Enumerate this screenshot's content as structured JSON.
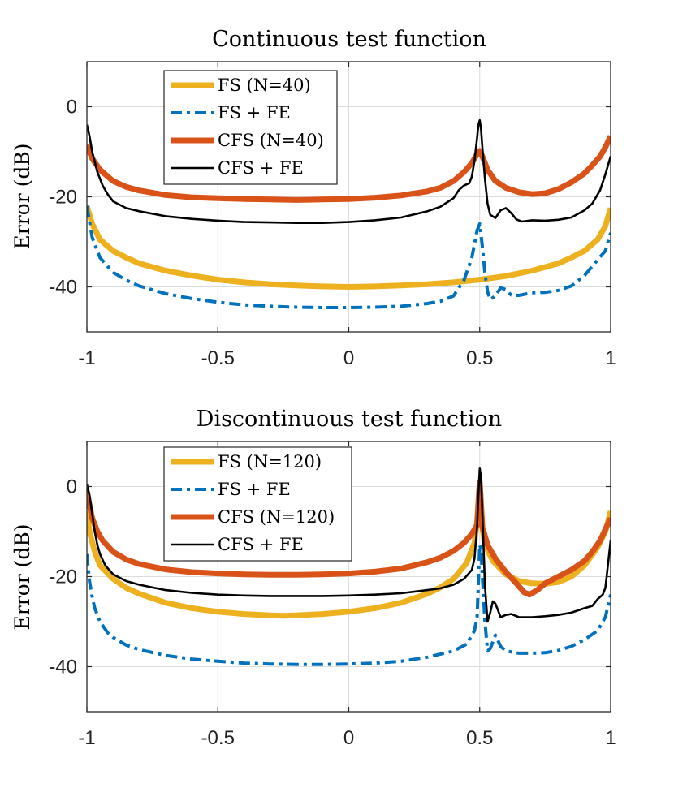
{
  "chart_data": [
    {
      "type": "line",
      "title": "Continuous test function",
      "xlabel": "",
      "ylabel": "Error (dB)",
      "xlim": [
        -1,
        1
      ],
      "ylim": [
        -50,
        10
      ],
      "xticks": [
        -1,
        -0.5,
        0,
        0.5,
        1
      ],
      "xtick_labels": [
        "-1",
        "-0.5",
        "0",
        "0.5",
        "1"
      ],
      "yticks": [
        -40,
        -20,
        0
      ],
      "ytick_labels": [
        "-40",
        "-20",
        "0"
      ],
      "grid": true,
      "legend_position": "top-left",
      "series": [
        {
          "name": "FS (N=40)",
          "color": "#EDB120",
          "style": "solid-thick",
          "x": [
            -1,
            -0.98,
            -0.95,
            -0.9,
            -0.85,
            -0.8,
            -0.7,
            -0.6,
            -0.5,
            -0.4,
            -0.3,
            -0.2,
            -0.1,
            0,
            0.1,
            0.2,
            0.3,
            0.4,
            0.5,
            0.6,
            0.7,
            0.8,
            0.85,
            0.9,
            0.95,
            0.98,
            1
          ],
          "y": [
            -22,
            -26,
            -29.5,
            -32,
            -33.5,
            -34.8,
            -36.4,
            -37.5,
            -38.4,
            -39,
            -39.4,
            -39.7,
            -39.9,
            -40,
            -39.9,
            -39.7,
            -39.4,
            -39,
            -38.4,
            -37.6,
            -36.4,
            -34.8,
            -33.5,
            -32,
            -29.5,
            -26.5,
            -22.5
          ]
        },
        {
          "name": "FS + FE",
          "color": "#0072BD",
          "style": "dash-dot",
          "x": [
            -1,
            -0.98,
            -0.95,
            -0.92,
            -0.9,
            -0.85,
            -0.8,
            -0.7,
            -0.6,
            -0.5,
            -0.4,
            -0.3,
            -0.2,
            -0.1,
            0,
            0.1,
            0.2,
            0.3,
            0.35,
            0.4,
            0.44,
            0.47,
            0.49,
            0.5,
            0.51,
            0.52,
            0.53,
            0.54,
            0.56,
            0.58,
            0.6,
            0.62,
            0.65,
            0.7,
            0.75,
            0.8,
            0.85,
            0.9,
            0.95,
            0.98,
            1
          ],
          "y": [
            -22,
            -29,
            -33.5,
            -35.5,
            -36.8,
            -38.5,
            -39.8,
            -41.5,
            -42.6,
            -43.4,
            -44,
            -44.3,
            -44.5,
            -44.6,
            -44.6,
            -44.5,
            -44.3,
            -43.7,
            -43.2,
            -42,
            -38.5,
            -33.5,
            -27.5,
            -26,
            -31,
            -37,
            -41,
            -42.8,
            -42,
            -40.2,
            -40.6,
            -41.8,
            -41.9,
            -41.3,
            -41.2,
            -40.8,
            -39.8,
            -37.5,
            -34,
            -32,
            -28
          ]
        },
        {
          "name": "CFS (N=40)",
          "color": "#D95319",
          "style": "solid-thick",
          "x": [
            -1,
            -0.98,
            -0.95,
            -0.9,
            -0.85,
            -0.8,
            -0.7,
            -0.6,
            -0.5,
            -0.4,
            -0.3,
            -0.2,
            -0.1,
            0,
            0.1,
            0.2,
            0.3,
            0.35,
            0.4,
            0.44,
            0.47,
            0.49,
            0.5,
            0.51,
            0.53,
            0.56,
            0.6,
            0.65,
            0.7,
            0.75,
            0.8,
            0.85,
            0.9,
            0.93,
            0.96,
            0.98,
            1
          ],
          "y": [
            -8.5,
            -11.5,
            -14,
            -16.5,
            -17.8,
            -18.6,
            -19.6,
            -20.1,
            -20.3,
            -20.5,
            -20.6,
            -20.7,
            -20.6,
            -20.5,
            -20.2,
            -19.7,
            -18.8,
            -18,
            -16.5,
            -14.5,
            -12.5,
            -10.5,
            -9.8,
            -11,
            -14,
            -16.5,
            -18,
            -19,
            -19.4,
            -19.2,
            -18.3,
            -16.8,
            -14.8,
            -13,
            -11,
            -9,
            -6.5
          ]
        },
        {
          "name": "CFS + FE",
          "color": "#000000",
          "style": "solid",
          "x": [
            -1,
            -0.99,
            -0.98,
            -0.96,
            -0.94,
            -0.92,
            -0.9,
            -0.85,
            -0.8,
            -0.7,
            -0.6,
            -0.5,
            -0.4,
            -0.3,
            -0.2,
            -0.1,
            0,
            0.1,
            0.2,
            0.3,
            0.35,
            0.4,
            0.42,
            0.44,
            0.46,
            0.47,
            0.48,
            0.49,
            0.495,
            0.5,
            0.505,
            0.51,
            0.52,
            0.53,
            0.54,
            0.56,
            0.58,
            0.6,
            0.62,
            0.64,
            0.66,
            0.7,
            0.75,
            0.8,
            0.85,
            0.9,
            0.93,
            0.96,
            0.98,
            1
          ],
          "y": [
            -4,
            -6.5,
            -10,
            -14.5,
            -17.5,
            -19.5,
            -21,
            -22.5,
            -23.2,
            -24.3,
            -24.9,
            -25.3,
            -25.6,
            -25.7,
            -25.8,
            -25.8,
            -25.6,
            -25.2,
            -24.6,
            -23.2,
            -22.2,
            -20.3,
            -18.5,
            -17.5,
            -17,
            -15.5,
            -12,
            -7,
            -4,
            -3,
            -5,
            -9,
            -16,
            -21.5,
            -24,
            -24.7,
            -23,
            -22.5,
            -23.6,
            -25,
            -25.5,
            -25.2,
            -25.3,
            -25.1,
            -24.6,
            -23,
            -21.5,
            -18.5,
            -15,
            -11
          ]
        }
      ]
    },
    {
      "type": "line",
      "title": "Discontinuous test function",
      "xlabel": "",
      "ylabel": "Error (dB)",
      "xlim": [
        -1,
        1
      ],
      "ylim": [
        -50,
        10
      ],
      "xticks": [
        -1,
        -0.5,
        0,
        0.5,
        1
      ],
      "xtick_labels": [
        "-1",
        "-0.5",
        "0",
        "0.5",
        "1"
      ],
      "yticks": [
        -40,
        -20,
        0
      ],
      "ytick_labels": [
        "-40",
        "-20",
        "0"
      ],
      "grid": true,
      "legend_position": "top-left",
      "series": [
        {
          "name": "FS (N=120)",
          "color": "#EDB120",
          "style": "solid-thick",
          "x": [
            -1,
            -0.99,
            -0.97,
            -0.95,
            -0.9,
            -0.85,
            -0.8,
            -0.7,
            -0.6,
            -0.5,
            -0.4,
            -0.3,
            -0.25,
            -0.2,
            -0.1,
            0,
            0.1,
            0.2,
            0.3,
            0.35,
            0.4,
            0.45,
            0.48,
            0.49,
            0.495,
            0.5,
            0.505,
            0.51,
            0.52,
            0.55,
            0.6,
            0.65,
            0.7,
            0.75,
            0.8,
            0.85,
            0.9,
            0.95,
            0.98,
            1
          ],
          "y": [
            -5.5,
            -10,
            -14.5,
            -17.5,
            -20.5,
            -22.5,
            -23.8,
            -25.8,
            -27,
            -27.8,
            -28.3,
            -28.6,
            -28.7,
            -28.6,
            -28.3,
            -27.8,
            -27,
            -25.8,
            -23.8,
            -22.4,
            -20.5,
            -17,
            -12.5,
            -8,
            -3,
            1,
            -4,
            -9,
            -13,
            -16.5,
            -19.5,
            -21,
            -21.5,
            -21.6,
            -21.2,
            -20,
            -17.5,
            -13.5,
            -10,
            -5.5
          ]
        },
        {
          "name": "FS + FE",
          "color": "#0072BD",
          "style": "dash-dot",
          "x": [
            -1,
            -0.99,
            -0.98,
            -0.97,
            -0.95,
            -0.92,
            -0.9,
            -0.85,
            -0.8,
            -0.7,
            -0.6,
            -0.5,
            -0.4,
            -0.3,
            -0.2,
            -0.1,
            0,
            0.1,
            0.2,
            0.3,
            0.4,
            0.45,
            0.48,
            0.49,
            0.5,
            0.505,
            0.51,
            0.52,
            0.53,
            0.54,
            0.56,
            0.58,
            0.6,
            0.65,
            0.7,
            0.75,
            0.8,
            0.85,
            0.9,
            0.95,
            0.98,
            1
          ],
          "y": [
            -15,
            -21,
            -24.5,
            -27,
            -30,
            -32.5,
            -33.5,
            -35.2,
            -36.2,
            -37.5,
            -38.3,
            -38.8,
            -39.2,
            -39.4,
            -39.5,
            -39.5,
            -39.4,
            -39.2,
            -38.8,
            -37.9,
            -36.5,
            -35,
            -32,
            -29,
            -13,
            -14,
            -20,
            -30,
            -36.5,
            -36,
            -33,
            -35.5,
            -36.5,
            -37,
            -37,
            -36.9,
            -36.4,
            -35.5,
            -34,
            -32,
            -29,
            -24
          ]
        },
        {
          "name": "CFS (N=120)",
          "color": "#D95319",
          "style": "solid-thick",
          "x": [
            -1,
            -0.99,
            -0.98,
            -0.96,
            -0.94,
            -0.9,
            -0.85,
            -0.8,
            -0.7,
            -0.6,
            -0.5,
            -0.4,
            -0.3,
            -0.2,
            -0.1,
            0,
            0.1,
            0.2,
            0.3,
            0.35,
            0.4,
            0.44,
            0.47,
            0.49,
            0.495,
            0.5,
            0.505,
            0.51,
            0.53,
            0.56,
            0.6,
            0.64,
            0.67,
            0.69,
            0.72,
            0.75,
            0.8,
            0.85,
            0.9,
            0.93,
            0.96,
            0.98,
            1
          ],
          "y": [
            -1,
            -4,
            -7,
            -10,
            -12,
            -14.5,
            -16.2,
            -17.2,
            -18.4,
            -19,
            -19.3,
            -19.5,
            -19.6,
            -19.6,
            -19.5,
            -19.3,
            -18.9,
            -18.2,
            -16.8,
            -15.8,
            -14.3,
            -12.5,
            -10.5,
            -8.5,
            -4,
            1,
            -4,
            -9,
            -13,
            -16,
            -19,
            -21.5,
            -23.5,
            -24,
            -23,
            -21.5,
            -20,
            -18.5,
            -16.5,
            -14.5,
            -12,
            -9.5,
            -7
          ]
        },
        {
          "name": "CFS + FE",
          "color": "#000000",
          "style": "solid",
          "x": [
            -1,
            -0.99,
            -0.98,
            -0.97,
            -0.96,
            -0.95,
            -0.93,
            -0.9,
            -0.85,
            -0.8,
            -0.7,
            -0.6,
            -0.5,
            -0.4,
            -0.3,
            -0.2,
            -0.1,
            0,
            0.1,
            0.2,
            0.3,
            0.35,
            0.4,
            0.44,
            0.47,
            0.48,
            0.49,
            0.495,
            0.5,
            0.505,
            0.51,
            0.52,
            0.53,
            0.54,
            0.55,
            0.56,
            0.58,
            0.6,
            0.62,
            0.65,
            0.7,
            0.75,
            0.8,
            0.85,
            0.9,
            0.93,
            0.95,
            0.97,
            0.98,
            1
          ],
          "y": [
            0.5,
            -2,
            -6,
            -10,
            -13,
            -15,
            -17.5,
            -19.5,
            -21,
            -21.8,
            -23,
            -23.6,
            -24,
            -24.2,
            -24.3,
            -24.3,
            -24.3,
            -24.2,
            -24,
            -23.7,
            -23,
            -22.6,
            -21.8,
            -20.5,
            -18.5,
            -16,
            -9,
            -2,
            4,
            2,
            -6,
            -22,
            -30,
            -28,
            -25.5,
            -26,
            -29,
            -28.5,
            -28.3,
            -29,
            -29,
            -28.8,
            -28.5,
            -28,
            -27,
            -26.5,
            -25,
            -24,
            -22.5,
            -12
          ]
        }
      ]
    }
  ]
}
